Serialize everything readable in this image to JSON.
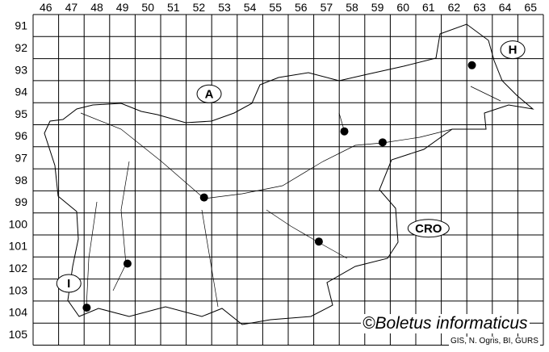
{
  "map": {
    "grid_columns": [
      "46",
      "47",
      "48",
      "49",
      "50",
      "51",
      "52",
      "53",
      "54",
      "55",
      "56",
      "57",
      "58",
      "59",
      "60",
      "61",
      "62",
      "63",
      "64",
      "65"
    ],
    "grid_rows": [
      "91",
      "92",
      "93",
      "94",
      "95",
      "96",
      "97",
      "98",
      "99",
      "100",
      "101",
      "102",
      "103",
      "104",
      "105"
    ],
    "country_labels": [
      {
        "text": "A",
        "col": 52.9,
        "row": 94.6
      },
      {
        "text": "H",
        "col": 64.8,
        "row": 92.6
      },
      {
        "text": "CRO",
        "col": 61.5,
        "row": 100.7
      },
      {
        "text": "I",
        "col": 47.4,
        "row": 103.2
      }
    ],
    "records": [
      {
        "col": 58.2,
        "row": 96.3
      },
      {
        "col": 59.7,
        "row": 96.8
      },
      {
        "col": 63.2,
        "row": 93.3
      },
      {
        "col": 52.7,
        "row": 99.3
      },
      {
        "col": 57.2,
        "row": 101.3
      },
      {
        "col": 49.7,
        "row": 102.3
      },
      {
        "col": 48.1,
        "row": 104.3
      }
    ],
    "marker_color": "#000000",
    "line_color": "#000000"
  },
  "credit": "©Boletus informaticus",
  "source": "GIS, N. Ogris, BI, GURS"
}
